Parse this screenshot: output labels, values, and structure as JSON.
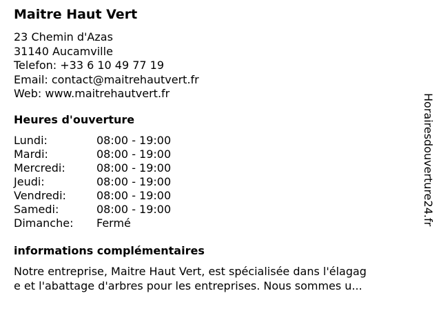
{
  "name": "Maitre Haut Vert",
  "address": [
    "23 Chemin d'Azas",
    "31140 Aucamville",
    "Telefon: +33 6 10 49 77 19",
    "Email: contact@maitrehautvert.fr",
    "Web: www.maitrehautvert.fr"
  ],
  "hours_title": "Heures d'ouverture",
  "hours": [
    {
      "day": "Lundi:",
      "time": "08:00 - 19:00"
    },
    {
      "day": "Mardi:",
      "time": "08:00 - 19:00"
    },
    {
      "day": "Mercredi:",
      "time": "08:00 - 19:00"
    },
    {
      "day": "Jeudi:",
      "time": "08:00 - 19:00"
    },
    {
      "day": "Vendredi:",
      "time": "08:00 - 19:00"
    },
    {
      "day": "Samedi:",
      "time": "08:00 - 19:00"
    },
    {
      "day": "Dimanche:",
      "time": "Fermé"
    }
  ],
  "info_title": "informations complémentaires",
  "info_lines": [
    "Notre entreprise, Maitre Haut Vert, est spécialisée dans l'élagag",
    "e et l'abattage d'arbres pour les entreprises. Nous sommes u..."
  ],
  "watermark": "Horairesdouverture24.fr"
}
